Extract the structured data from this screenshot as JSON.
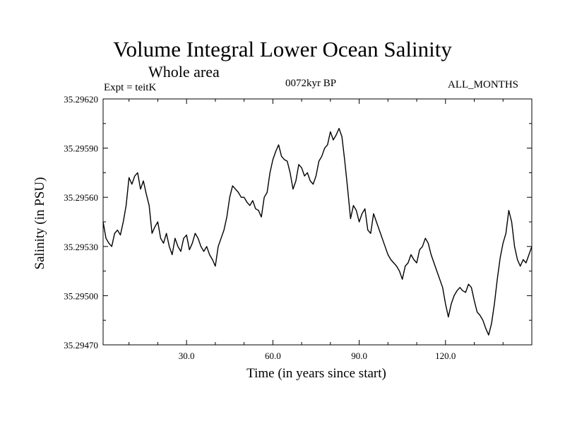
{
  "chart_data": {
    "type": "line",
    "title": "Volume Integral Lower Ocean Salinity",
    "subtitle": "Whole area",
    "annotations": {
      "experiment": "Expt = teitK",
      "period": "0072kyr BP",
      "months": "ALL_MONTHS"
    },
    "xlabel": "Time (in years since start)",
    "ylabel": "Salinity (in PSU)",
    "xlim": [
      1,
      150
    ],
    "ylim": [
      35.2947,
      35.2962
    ],
    "x_ticks": [
      {
        "value": 30,
        "label": "30.0"
      },
      {
        "value": 60,
        "label": "60.0"
      },
      {
        "value": 90,
        "label": "90.0"
      },
      {
        "value": 120,
        "label": "120.0"
      }
    ],
    "y_ticks": [
      {
        "value": 35.2947,
        "label": "35.29470"
      },
      {
        "value": 35.295,
        "label": "35.29500"
      },
      {
        "value": 35.2953,
        "label": "35.29530"
      },
      {
        "value": 35.2956,
        "label": "35.29560"
      },
      {
        "value": 35.2959,
        "label": "35.29590"
      },
      {
        "value": 35.2962,
        "label": "35.29620"
      }
    ],
    "grid": false,
    "series": [
      {
        "name": "salinity",
        "x": [
          1,
          2,
          3,
          4,
          5,
          6,
          7,
          8,
          9,
          10,
          11,
          12,
          13,
          14,
          15,
          16,
          17,
          18,
          19,
          20,
          21,
          22,
          23,
          24,
          25,
          26,
          27,
          28,
          29,
          30,
          31,
          32,
          33,
          34,
          35,
          36,
          37,
          38,
          39,
          40,
          41,
          42,
          43,
          44,
          45,
          46,
          47,
          48,
          49,
          50,
          51,
          52,
          53,
          54,
          55,
          56,
          57,
          58,
          59,
          60,
          61,
          62,
          63,
          64,
          65,
          66,
          67,
          68,
          69,
          70,
          71,
          72,
          73,
          74,
          75,
          76,
          77,
          78,
          79,
          80,
          81,
          82,
          83,
          84,
          85,
          86,
          87,
          88,
          89,
          90,
          91,
          92,
          93,
          94,
          95,
          96,
          97,
          98,
          99,
          100,
          101,
          102,
          103,
          104,
          105,
          106,
          107,
          108,
          109,
          110,
          111,
          112,
          113,
          114,
          115,
          116,
          117,
          118,
          119,
          120,
          121,
          122,
          123,
          124,
          125,
          126,
          127,
          128,
          129,
          130,
          131,
          132,
          133,
          134,
          135,
          136,
          137,
          138,
          139,
          140,
          141,
          142,
          143,
          144,
          145,
          146,
          147,
          148,
          149,
          150
        ],
        "values": [
          35.29545,
          35.29535,
          35.29532,
          35.2953,
          35.29538,
          35.2954,
          35.29537,
          35.29545,
          35.29555,
          35.29572,
          35.29568,
          35.29573,
          35.29575,
          35.29565,
          35.2957,
          35.29562,
          35.29555,
          35.29538,
          35.29542,
          35.29545,
          35.29535,
          35.29532,
          35.29538,
          35.2953,
          35.29525,
          35.29535,
          35.2953,
          35.29527,
          35.29535,
          35.29537,
          35.29528,
          35.29532,
          35.29538,
          35.29535,
          35.2953,
          35.29527,
          35.2953,
          35.29525,
          35.29522,
          35.29518,
          35.2953,
          35.29535,
          35.2954,
          35.29548,
          35.2956,
          35.29567,
          35.29565,
          35.29563,
          35.2956,
          35.2956,
          35.29557,
          35.29555,
          35.29558,
          35.29553,
          35.29552,
          35.29548,
          35.2956,
          35.29563,
          35.29575,
          35.29583,
          35.29588,
          35.29592,
          35.29585,
          35.29583,
          35.29582,
          35.29575,
          35.29565,
          35.2957,
          35.2958,
          35.29578,
          35.29573,
          35.29575,
          35.2957,
          35.29568,
          35.29573,
          35.29582,
          35.29585,
          35.2959,
          35.29592,
          35.296,
          35.29595,
          35.29598,
          35.29602,
          35.29597,
          35.29582,
          35.29565,
          35.29547,
          35.29555,
          35.29552,
          35.29545,
          35.2955,
          35.29553,
          35.2954,
          35.29538,
          35.2955,
          35.29545,
          35.2954,
          35.29535,
          35.2953,
          35.29525,
          35.29522,
          35.2952,
          35.29518,
          35.29515,
          35.2951,
          35.29518,
          35.2952,
          35.29525,
          35.29522,
          35.2952,
          35.29528,
          35.2953,
          35.29535,
          35.29532,
          35.29525,
          35.2952,
          35.29515,
          35.2951,
          35.29505,
          35.29495,
          35.29487,
          35.29495,
          35.295,
          35.29503,
          35.29505,
          35.29503,
          35.29502,
          35.29507,
          35.29505,
          35.29497,
          35.2949,
          35.29488,
          35.29485,
          35.2948,
          35.29476,
          35.29483,
          35.29495,
          35.2951,
          35.29523,
          35.29532,
          35.29538,
          35.29552,
          35.29545,
          35.2953,
          35.29522,
          35.29518,
          35.29522,
          35.2952,
          35.29525,
          35.2953
        ]
      }
    ]
  }
}
